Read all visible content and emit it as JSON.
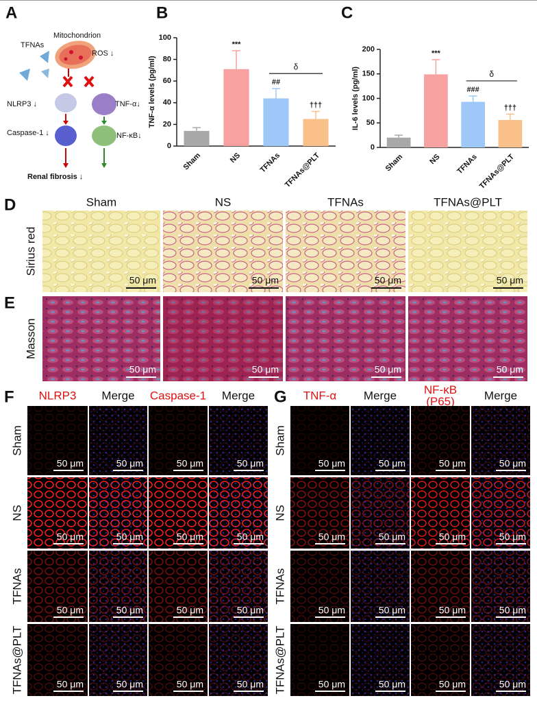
{
  "panel_labels": [
    "A",
    "B",
    "C",
    "D",
    "E",
    "F",
    "G"
  ],
  "scale_bar": "50 μm",
  "diagram": {
    "tfnas": "TFNAs",
    "mitochondrion": "Mitochondrion",
    "ros": "ROS ↓",
    "nlrp3": "NLRP3 ↓",
    "tnf": "TNF-α↓",
    "caspase": "Caspase-1 ↓",
    "nfkb": "NF-κB↓",
    "outcome": "Renal fibrosis ↓"
  },
  "chart_data": [
    {
      "type": "bar",
      "y_label": "TNF-α levels (pg/ml)",
      "categories": [
        "Sham",
        "NS",
        "TFNAs",
        "TFNAs@PLT"
      ],
      "values": [
        14,
        71,
        44,
        25
      ],
      "errors": [
        3,
        17,
        9,
        7
      ],
      "colors": [
        "#a8a8a8",
        "#f7a1a1",
        "#9ec8f7",
        "#f9c089"
      ],
      "ylim": [
        0,
        100
      ],
      "yticks": [
        0,
        20,
        40,
        60,
        80,
        100
      ],
      "annotations": [
        {
          "category": "NS",
          "text": "***"
        },
        {
          "category": "TFNAs",
          "text": "##"
        },
        {
          "category": "TFNAs@PLT",
          "text": "†††"
        }
      ],
      "comparison": {
        "from": "TFNAs",
        "to": "TFNAs@PLT",
        "text": "δ"
      }
    },
    {
      "type": "bar",
      "y_label": "IL-6 levels (pg/ml)",
      "categories": [
        "Sham",
        "NS",
        "TFNAs",
        "TFNAs@PLT"
      ],
      "values": [
        20,
        149,
        93,
        56
      ],
      "errors": [
        5,
        30,
        12,
        12
      ],
      "colors": [
        "#a8a8a8",
        "#f7a1a1",
        "#9ec8f7",
        "#f9c089"
      ],
      "ylim": [
        0,
        200
      ],
      "yticks": [
        0,
        50,
        100,
        150,
        200
      ],
      "annotations": [
        {
          "category": "NS",
          "text": "***"
        },
        {
          "category": "TFNAs",
          "text": "###"
        },
        {
          "category": "TFNAs@PLT",
          "text": "†††"
        }
      ],
      "comparison": {
        "from": "TFNAs",
        "to": "TFNAs@PLT",
        "text": "δ"
      }
    }
  ],
  "histology": {
    "columns": [
      "Sham",
      "NS",
      "TFNAs",
      "TFNAs@PLT"
    ],
    "rows": [
      "Sirius red",
      "Masson"
    ]
  },
  "fluorescence_f": {
    "columns": [
      [
        "NLRP3"
      ],
      [
        "Merge"
      ],
      [
        "Caspase-1"
      ],
      [
        "Merge"
      ]
    ],
    "rows": [
      "Sham",
      "NS",
      "TFNAs",
      "TFNAs@PLT"
    ]
  },
  "fluorescence_g": {
    "columns": [
      [
        "TNF-α"
      ],
      [
        "Merge"
      ],
      [
        "NF-κB",
        "(P65)"
      ],
      [
        "Merge"
      ]
    ],
    "rows": [
      "Sham",
      "NS",
      "TFNAs",
      "TFNAs@PLT"
    ]
  }
}
